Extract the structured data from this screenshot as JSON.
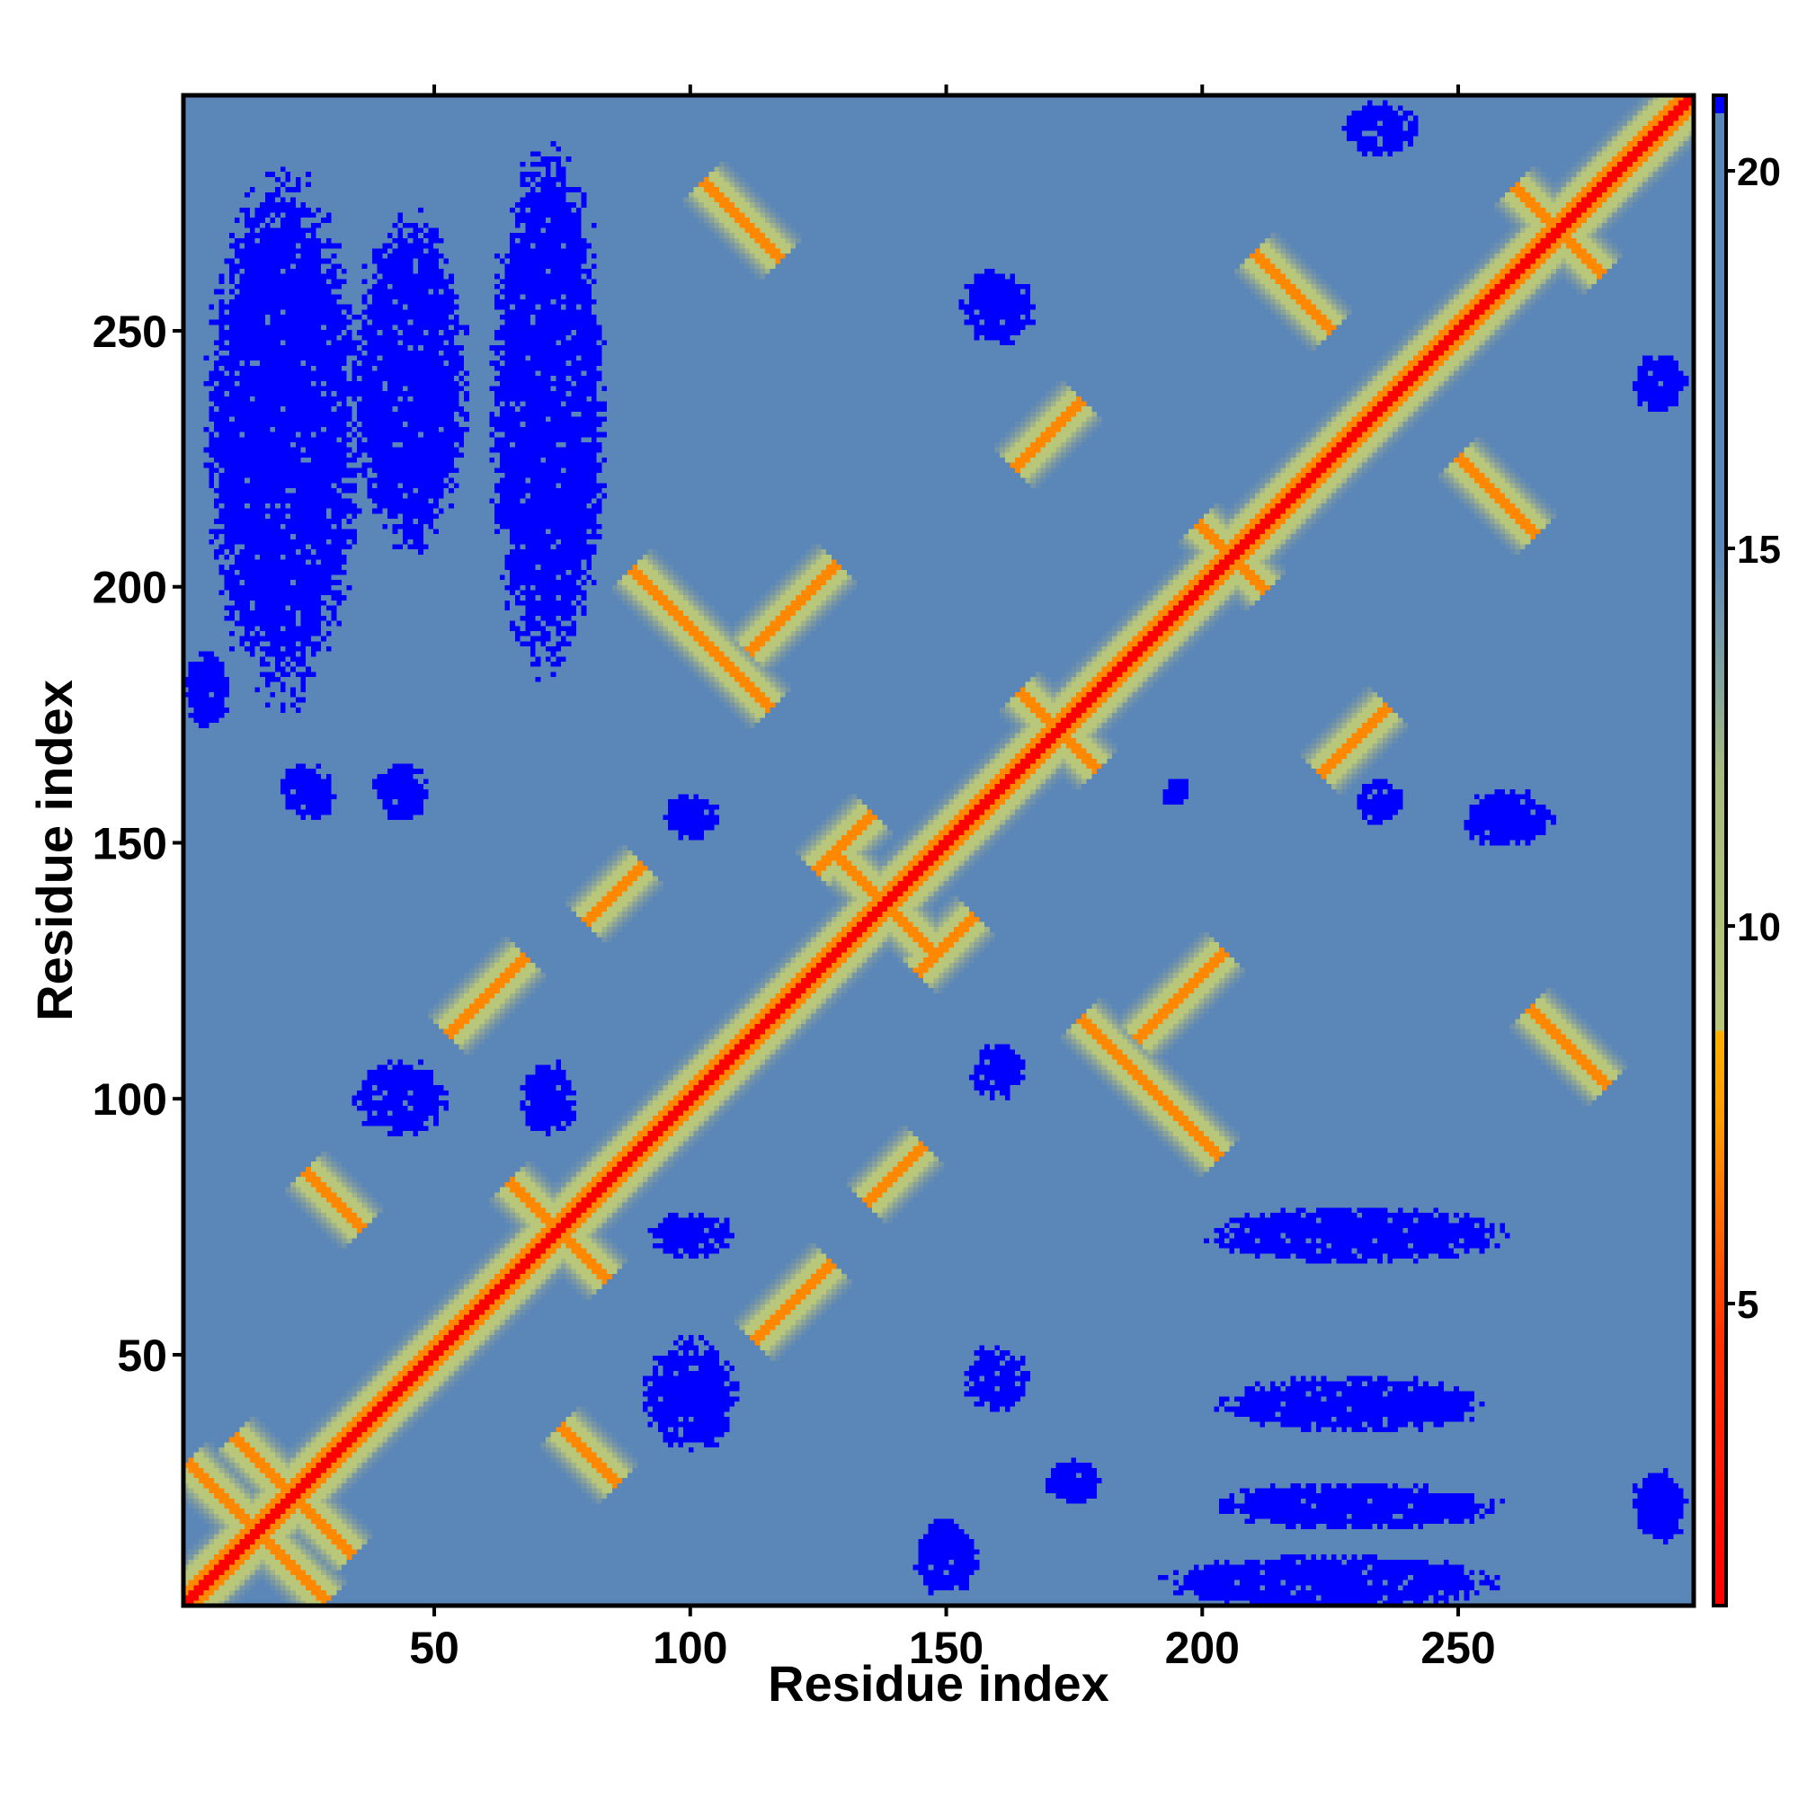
{
  "chart_data": {
    "type": "heatmap",
    "title": "",
    "xlabel": "Residue index",
    "ylabel": "Residue index",
    "n_residues": 296,
    "xlim": [
      1,
      296
    ],
    "ylim": [
      1,
      296
    ],
    "x_ticks": [
      50,
      100,
      150,
      200,
      250
    ],
    "y_ticks": [
      50,
      100,
      150,
      200,
      250
    ],
    "colorbar": {
      "min": 1,
      "max": 21,
      "ticks": [
        5,
        10,
        15,
        20
      ],
      "colors": {
        "red": "#ff0000",
        "orange": "#ff9a00",
        "yellow_green": "#b9c77a",
        "steel_blue": "#5b86b8",
        "blue": "#0000ff"
      }
    },
    "contacts": [
      {
        "x": 15,
        "y": 15,
        "orientation": "anti",
        "half_length": 14
      },
      {
        "x": 22,
        "y": 22,
        "orientation": "anti",
        "half_length": 12
      },
      {
        "x": 74,
        "y": 74,
        "orientation": "anti",
        "half_length": 10
      },
      {
        "x": 138,
        "y": 138,
        "orientation": "anti",
        "half_length": 10
      },
      {
        "x": 172,
        "y": 172,
        "orientation": "anti",
        "half_length": 8
      },
      {
        "x": 206,
        "y": 206,
        "orientation": "anti",
        "half_length": 7
      },
      {
        "x": 270,
        "y": 270,
        "orientation": "anti",
        "half_length": 9
      },
      {
        "x": 30,
        "y": 80,
        "orientation": "anti",
        "half_length": 6
      },
      {
        "x": 80,
        "y": 30,
        "orientation": "anti",
        "half_length": 6
      },
      {
        "x": 130,
        "y": 150,
        "orientation": "parallel",
        "half_length": 6
      },
      {
        "x": 150,
        "y": 130,
        "orientation": "parallel",
        "half_length": 6
      },
      {
        "x": 102,
        "y": 190,
        "orientation": "anti",
        "half_length": 14
      },
      {
        "x": 190,
        "y": 102,
        "orientation": "anti",
        "half_length": 14
      },
      {
        "x": 120,
        "y": 60,
        "orientation": "parallel",
        "half_length": 8
      },
      {
        "x": 60,
        "y": 120,
        "orientation": "parallel",
        "half_length": 8
      },
      {
        "x": 196,
        "y": 120,
        "orientation": "parallel",
        "half_length": 9
      },
      {
        "x": 120,
        "y": 196,
        "orientation": "parallel",
        "half_length": 9
      },
      {
        "x": 272,
        "y": 110,
        "orientation": "anti",
        "half_length": 8
      },
      {
        "x": 110,
        "y": 272,
        "orientation": "anti",
        "half_length": 8
      },
      {
        "x": 218,
        "y": 258,
        "orientation": "anti",
        "half_length": 8
      },
      {
        "x": 258,
        "y": 218,
        "orientation": "anti",
        "half_length": 8
      },
      {
        "x": 140,
        "y": 85,
        "orientation": "parallel",
        "half_length": 6
      },
      {
        "x": 85,
        "y": 140,
        "orientation": "parallel",
        "half_length": 6
      },
      {
        "x": 230,
        "y": 170,
        "orientation": "parallel",
        "half_length": 7
      },
      {
        "x": 170,
        "y": 230,
        "orientation": "parallel",
        "half_length": 7
      }
    ],
    "far_regions": [
      {
        "x": 20,
        "y": 230,
        "rx": 16,
        "ry": 55
      },
      {
        "x": 45,
        "y": 240,
        "rx": 12,
        "ry": 35
      },
      {
        "x": 72,
        "y": 235,
        "rx": 12,
        "ry": 55
      },
      {
        "x": 43,
        "y": 160,
        "rx": 6,
        "ry": 6
      },
      {
        "x": 25,
        "y": 160,
        "rx": 6,
        "ry": 6
      },
      {
        "x": 5,
        "y": 180,
        "rx": 5,
        "ry": 8
      },
      {
        "x": 43,
        "y": 100,
        "rx": 10,
        "ry": 8
      },
      {
        "x": 72,
        "y": 100,
        "rx": 6,
        "ry": 8
      },
      {
        "x": 100,
        "y": 155,
        "rx": 6,
        "ry": 5
      },
      {
        "x": 160,
        "y": 255,
        "rx": 8,
        "ry": 8
      },
      {
        "x": 160,
        "y": 105,
        "rx": 6,
        "ry": 6
      },
      {
        "x": 160,
        "y": 45,
        "rx": 7,
        "ry": 7
      },
      {
        "x": 175,
        "y": 25,
        "rx": 6,
        "ry": 5
      },
      {
        "x": 100,
        "y": 42,
        "rx": 10,
        "ry": 12
      },
      {
        "x": 100,
        "y": 73,
        "rx": 9,
        "ry": 5
      },
      {
        "x": 230,
        "y": 73,
        "rx": 32,
        "ry": 6
      },
      {
        "x": 230,
        "y": 40,
        "rx": 28,
        "ry": 6
      },
      {
        "x": 230,
        "y": 20,
        "rx": 30,
        "ry": 5
      },
      {
        "x": 225,
        "y": 5,
        "rx": 35,
        "ry": 6
      },
      {
        "x": 260,
        "y": 155,
        "rx": 10,
        "ry": 6
      },
      {
        "x": 235,
        "y": 158,
        "rx": 5,
        "ry": 5
      },
      {
        "x": 290,
        "y": 240,
        "rx": 6,
        "ry": 6
      },
      {
        "x": 235,
        "y": 290,
        "rx": 8,
        "ry": 6
      },
      {
        "x": 195,
        "y": 160,
        "rx": 3,
        "ry": 3
      },
      {
        "x": 290,
        "y": 20,
        "rx": 6,
        "ry": 8
      },
      {
        "x": 150,
        "y": 10,
        "rx": 7,
        "ry": 8
      }
    ]
  }
}
